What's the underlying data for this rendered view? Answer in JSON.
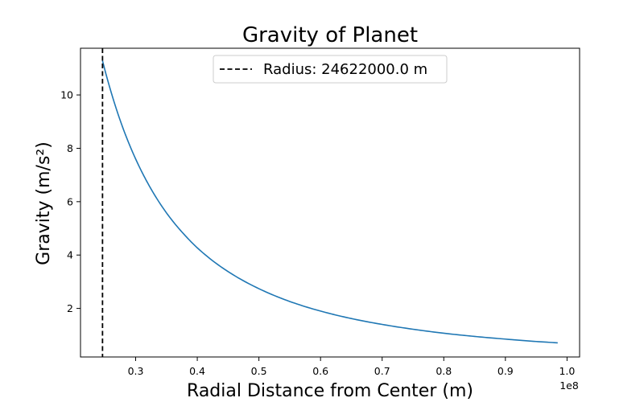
{
  "chart_data": {
    "type": "line",
    "title": "Gravity of Planet",
    "xlabel": "Radial Distance from Center (m)",
    "ylabel": "Gravity (m/s²)",
    "x_offset_label": "1e8",
    "x_scale": 100000000,
    "xlim": [
      0.2105,
      1.0204
    ],
    "ylim": [
      0.18,
      11.75
    ],
    "x_ticks": [
      0.3,
      0.4,
      0.5,
      0.6,
      0.7,
      0.8,
      0.9,
      1.0
    ],
    "x_tick_labels": [
      "0.3",
      "0.4",
      "0.5",
      "0.6",
      "0.7",
      "0.8",
      "0.9",
      "1.0"
    ],
    "y_ticks": [
      2,
      4,
      6,
      8,
      10
    ],
    "y_tick_labels": [
      "2",
      "4",
      "6",
      "8",
      "10"
    ],
    "grid": false,
    "legend": {
      "position": "upper-center",
      "entries": [
        {
          "label": "Radius: 24622000.0 m",
          "style": "dashed",
          "color": "#000000"
        }
      ]
    },
    "series": [
      {
        "color": "#1f77b4",
        "x": [
          0.24622,
          0.26,
          0.28,
          0.3,
          0.32,
          0.35,
          0.38,
          0.4,
          0.45,
          0.5,
          0.55,
          0.6,
          0.65,
          0.7,
          0.75,
          0.8,
          0.85,
          0.9,
          0.95,
          0.98488
        ],
        "y": [
          11.28,
          10.12,
          8.72,
          7.6,
          6.68,
          5.58,
          4.74,
          4.27,
          3.38,
          2.74,
          2.26,
          1.9,
          1.62,
          1.4,
          1.22,
          1.07,
          0.95,
          0.85,
          0.76,
          0.71
        ]
      }
    ],
    "vertical_lines": [
      {
        "x": 0.24622,
        "style": "dashed",
        "color": "#000000"
      }
    ]
  }
}
